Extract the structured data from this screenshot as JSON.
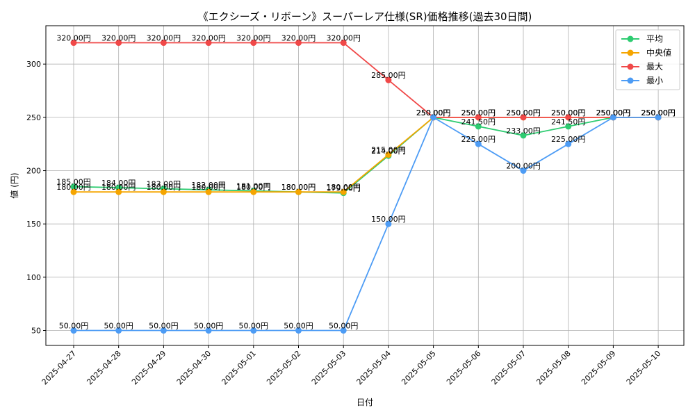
{
  "chart_data": {
    "type": "line",
    "title": "《エクシーズ・リボーン》スーパーレア仕様(SR)価格推移(過去30日間)",
    "xlabel": "日付",
    "ylabel": "値 (円)",
    "categories": [
      "2025-04-27",
      "2025-04-28",
      "2025-04-29",
      "2025-04-30",
      "2025-05-01",
      "2025-05-02",
      "2025-05-03",
      "2025-05-04",
      "2025-05-05",
      "2025-05-06",
      "2025-05-07",
      "2025-05-08",
      "2025-05-09",
      "2025-05-10"
    ],
    "yticks": [
      50,
      100,
      150,
      200,
      250,
      300
    ],
    "ylim": [
      36,
      336
    ],
    "grid": true,
    "legend_position": "top-right",
    "value_suffix": "円",
    "series": [
      {
        "name": "平均",
        "color": "#2ecc71",
        "values": [
          185,
          184,
          183,
          182,
          181,
          180,
          179,
          214,
          250,
          241.5,
          233,
          241.5,
          250,
          250
        ]
      },
      {
        "name": "中央値",
        "color": "#f5a500",
        "values": [
          180,
          180,
          180,
          180,
          180,
          180,
          180,
          215,
          250,
          250,
          250,
          250,
          250,
          250
        ]
      },
      {
        "name": "最大",
        "color": "#f04848",
        "values": [
          320,
          320,
          320,
          320,
          320,
          320,
          320,
          285,
          250,
          250,
          250,
          250,
          250,
          250
        ]
      },
      {
        "name": "最小",
        "color": "#4d9cf5",
        "values": [
          50,
          50,
          50,
          50,
          50,
          50,
          50,
          150,
          250,
          225,
          200,
          225,
          250,
          250
        ]
      }
    ]
  }
}
